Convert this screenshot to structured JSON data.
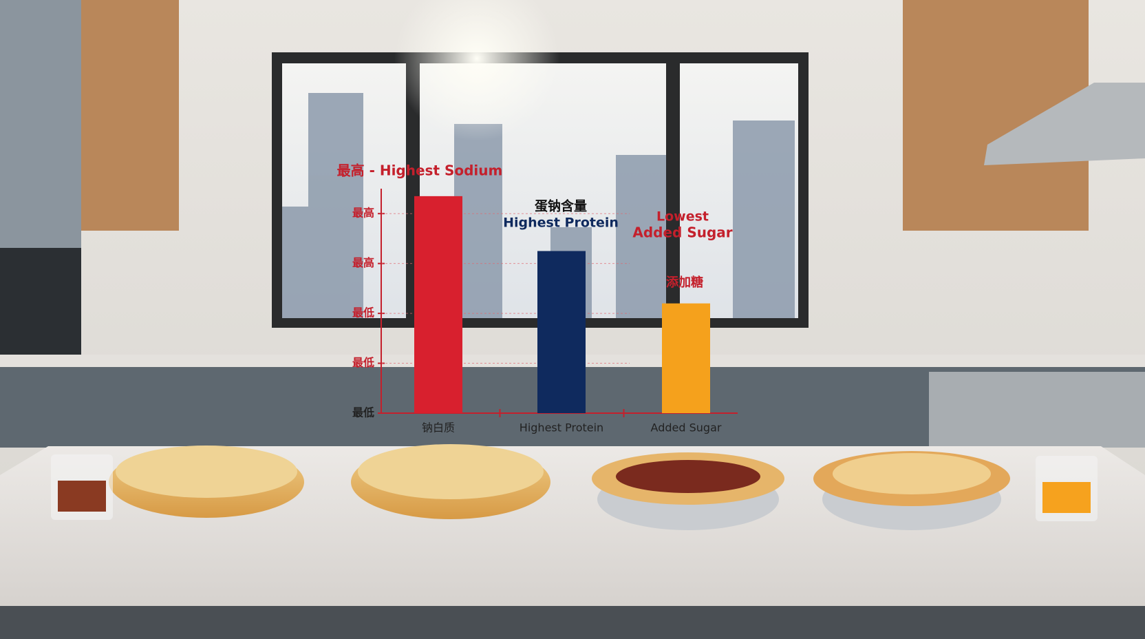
{
  "chart_data": {
    "type": "bar",
    "annotations": [
      "最高 - Highest Sodium",
      "蛋钠含量",
      "Highest Protein",
      "Lowest",
      "Added Sugar",
      "添加糖"
    ],
    "categories": [
      "钠白质",
      "Highest Protein",
      "Added Sugar"
    ],
    "values": [
      4.35,
      3.25,
      2.2
    ],
    "colors": [
      "#d8202e",
      "#0f2a5e",
      "#f5a11c"
    ],
    "ylim": [
      0,
      4.5
    ],
    "yticks": [
      {
        "value": 0,
        "label": "最低"
      },
      {
        "value": 1,
        "label": "最低"
      },
      {
        "value": 2,
        "label": "最低"
      },
      {
        "value": 3,
        "label": "最高"
      },
      {
        "value": 4,
        "label": "最高"
      }
    ],
    "grid": true
  }
}
